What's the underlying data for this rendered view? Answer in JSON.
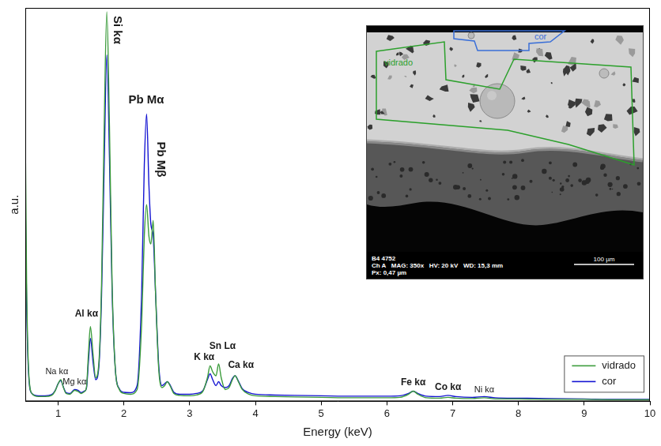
{
  "chart_data": {
    "type": "line",
    "x_label": "Energy (keV)",
    "y_label": "a.u.",
    "x": [
      0.5,
      0.52,
      0.55,
      0.6,
      0.7,
      0.8,
      0.9,
      0.95,
      1.0,
      1.04,
      1.08,
      1.12,
      1.18,
      1.25,
      1.3,
      1.35,
      1.4,
      1.43,
      1.46,
      1.49,
      1.53,
      1.57,
      1.62,
      1.66,
      1.7,
      1.74,
      1.78,
      1.82,
      1.87,
      1.93,
      2.0,
      2.1,
      2.2,
      2.27,
      2.31,
      2.345,
      2.38,
      2.41,
      2.445,
      2.48,
      2.53,
      2.58,
      2.62,
      2.66,
      2.7,
      2.76,
      2.85,
      3.0,
      3.1,
      3.2,
      3.27,
      3.31,
      3.35,
      3.4,
      3.44,
      3.48,
      3.54,
      3.6,
      3.65,
      3.69,
      3.74,
      3.8,
      3.9,
      4.0,
      4.3,
      4.6,
      5.0,
      5.5,
      6.0,
      6.2,
      6.33,
      6.4,
      6.47,
      6.6,
      6.8,
      6.93,
      7.05,
      7.3,
      7.48,
      7.65,
      8.0,
      8.5,
      9.0,
      9.5,
      10.0
    ],
    "series": [
      {
        "name": "vidrado",
        "color": "#3c9c3c",
        "values": [
          69,
          30,
          8,
          2,
          1.2,
          1.2,
          1.5,
          2.5,
          4.5,
          5.5,
          3.5,
          2.0,
          1.8,
          2.8,
          2.5,
          2.0,
          2.5,
          3.5,
          12,
          19,
          12,
          6,
          10,
          30,
          70,
          99,
          70,
          30,
          8,
          3,
          2,
          1.8,
          3,
          20,
          42,
          50,
          42,
          40,
          46,
          28,
          8,
          3.5,
          4,
          5,
          4,
          2,
          1.5,
          1.4,
          1.6,
          2.5,
          6,
          9,
          7.5,
          6.5,
          9.5,
          6,
          3,
          3.5,
          5.5,
          6.5,
          5,
          3,
          1.8,
          1.4,
          1.2,
          1.1,
          1.0,
          0.9,
          0.9,
          1.0,
          1.8,
          2.6,
          1.8,
          0.9,
          0.8,
          1.0,
          0.8,
          0.7,
          0.9,
          0.6,
          0.6,
          0.5,
          0.5,
          0.4,
          0.4
        ]
      },
      {
        "name": "cor",
        "color": "#1414d2",
        "values": [
          52,
          25,
          7,
          2,
          1.4,
          1.4,
          1.7,
          2.6,
          4.5,
          5.3,
          3.6,
          2.2,
          2.0,
          3.0,
          2.8,
          2.2,
          2.6,
          3.3,
          10,
          16,
          10,
          5.5,
          9,
          27,
          60,
          88,
          62,
          28,
          8,
          3.2,
          2.3,
          2.2,
          4,
          28,
          60,
          73,
          55,
          45,
          42,
          28,
          9,
          4,
          4.5,
          5,
          4.2,
          2.3,
          1.8,
          1.8,
          2.0,
          2.7,
          5.5,
          7,
          5.5,
          4,
          5,
          4,
          3.5,
          4,
          5.8,
          6.5,
          5.2,
          3.2,
          2.2,
          1.8,
          1.6,
          1.5,
          1.4,
          1.3,
          1.3,
          1.4,
          2.0,
          2.6,
          2.0,
          1.3,
          1.2,
          1.5,
          1.2,
          1.0,
          1.2,
          0.9,
          0.8,
          0.7,
          0.6,
          0.5,
          0.5
        ]
      }
    ],
    "xlim": [
      0.5,
      10
    ],
    "xticks": [
      1,
      2,
      3,
      4,
      5,
      6,
      7,
      8,
      9,
      10
    ],
    "ylim": [
      0,
      100
    ],
    "tick_labels": "x",
    "grid": false,
    "legend": "bottom-right",
    "annotations": [
      {
        "text": "Na kα",
        "x": 0.98,
        "y": 6.5
      },
      {
        "text": "Mg kα",
        "x": 1.25,
        "y": 3.8
      },
      {
        "text": "Al kα",
        "x": 1.43,
        "y": 21
      },
      {
        "text": "Si kα",
        "x": 1.9,
        "y": 98
      },
      {
        "text": "Pb Mα",
        "x": 2.34,
        "y": 75
      },
      {
        "text": "Pb Mβ",
        "x": 2.56,
        "y": 66
      },
      {
        "text": "K kα",
        "x": 3.22,
        "y": 10
      },
      {
        "text": "Sn Lα",
        "x": 3.5,
        "y": 12.8
      },
      {
        "text": "Ca kα",
        "x": 3.78,
        "y": 8
      },
      {
        "text": "Fe kα",
        "x": 6.4,
        "y": 3.5
      },
      {
        "text": "Co kα",
        "x": 6.93,
        "y": 2.3
      },
      {
        "text": "Ni kα",
        "x": 7.48,
        "y": 1.7
      }
    ]
  },
  "inset": {
    "regions": [
      {
        "label": "cor",
        "color": "#3a6fd8"
      },
      {
        "label": "vidrado",
        "color": "#2ca02c"
      }
    ],
    "info": [
      "B4 4752",
      "Ch A   MAG: 350x   HV: 20 kV   WD: 15,3 mm",
      "Px: 0,47 µm"
    ],
    "scale_bar": "100 µm"
  }
}
